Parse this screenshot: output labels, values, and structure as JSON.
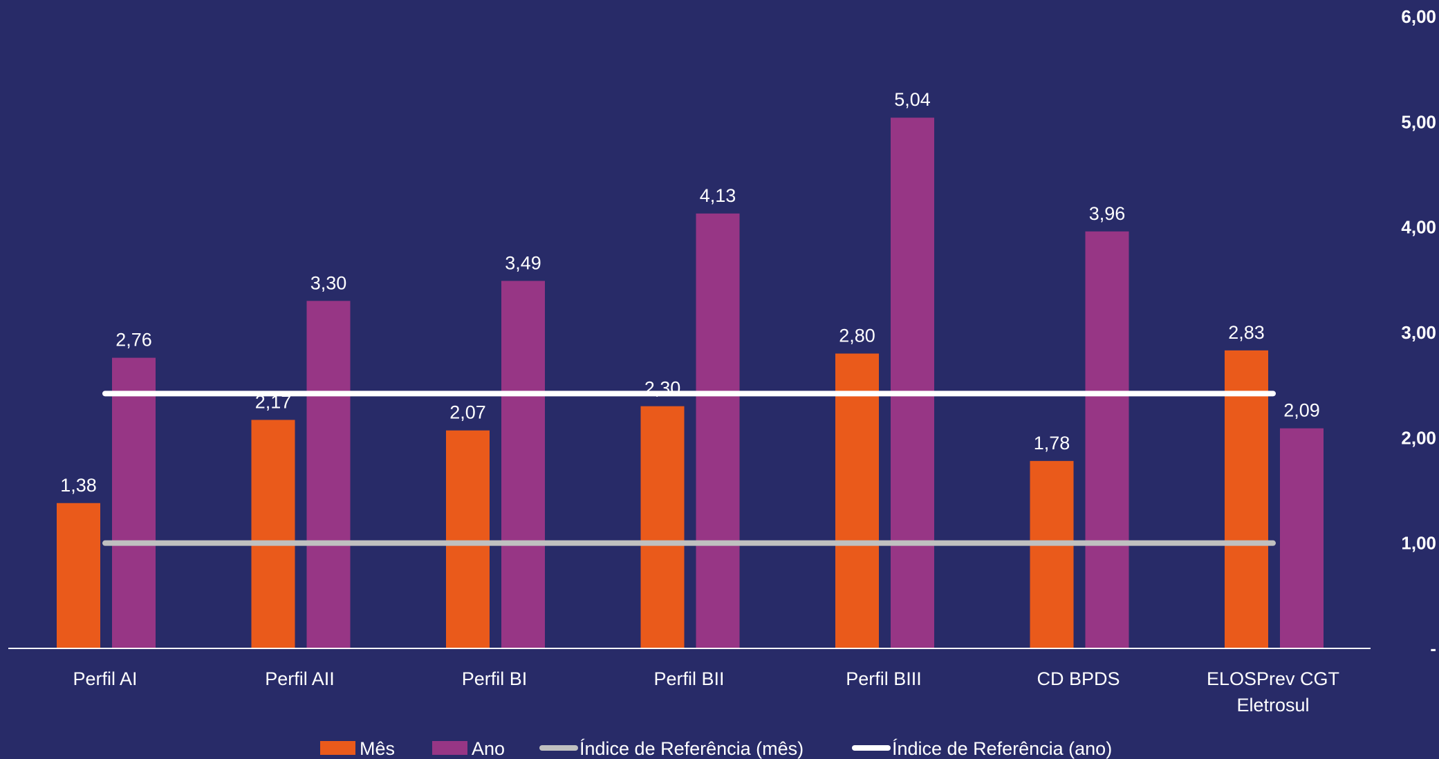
{
  "chart_data": {
    "type": "bar",
    "categories": [
      "Perfil AI",
      "Perfil AII",
      "Perfil BI",
      "Perfil BII",
      "Perfil BIII",
      "CD BPDS",
      "ELOSPrev CGT Eletrosul"
    ],
    "category_lines": [
      [
        "Perfil AI"
      ],
      [
        "Perfil AII"
      ],
      [
        "Perfil BI"
      ],
      [
        "Perfil BII"
      ],
      [
        "Perfil BIII"
      ],
      [
        "CD BPDS"
      ],
      [
        "ELOSPrev CGT",
        "Eletrosul"
      ]
    ],
    "series": [
      {
        "name": "Mês",
        "type": "bar",
        "color": "#ea5a1b",
        "values": [
          1.38,
          2.17,
          2.07,
          2.3,
          2.8,
          1.78,
          2.83
        ],
        "labels": [
          "1,38",
          "2,17",
          "2,07",
          "2,30",
          "2,80",
          "1,78",
          "2,83"
        ]
      },
      {
        "name": "Ano",
        "type": "bar",
        "color": "#973685",
        "values": [
          2.76,
          3.3,
          3.49,
          4.13,
          5.04,
          3.96,
          2.09
        ],
        "labels": [
          "2,76",
          "3,30",
          "3,49",
          "4,13",
          "5,04",
          "3,96",
          "2,09"
        ]
      },
      {
        "name": "Índice de Referência (mês)",
        "type": "line",
        "color": "#c0c0c0",
        "value": 1.0
      },
      {
        "name": "Índice de Referência (ano)",
        "type": "line",
        "color": "#ffffff",
        "value": 2.42
      }
    ],
    "y_axis": {
      "position": "right",
      "ylim": [
        0,
        6
      ],
      "ticks": [
        0,
        1,
        2,
        3,
        4,
        5,
        6
      ],
      "tick_labels": [
        "-",
        "1,00",
        "2,00",
        "3,00",
        "4,00",
        "5,00",
        "6,00"
      ]
    },
    "grid": false,
    "legend_position": "bottom"
  },
  "colors": {
    "background": "#282b68",
    "text": "#ffffff",
    "axis": "#ffffff"
  }
}
